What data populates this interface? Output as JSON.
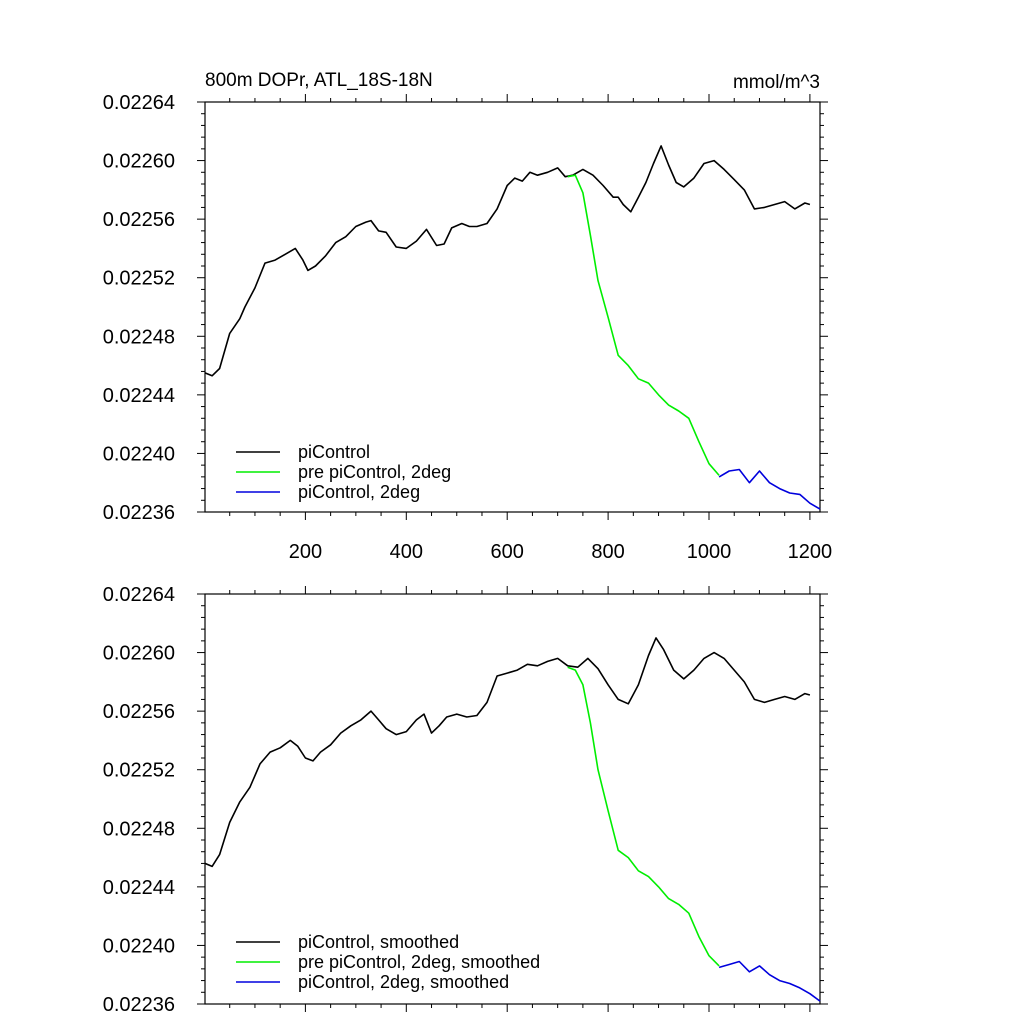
{
  "chart_data": [
    {
      "type": "line",
      "title": "800m DOPr, ATL_18S-18N",
      "units": "mmol/m^3",
      "xlim": [
        1,
        1220
      ],
      "ylim": [
        0.02236,
        0.02264
      ],
      "x_ticks": [
        200,
        400,
        600,
        800,
        1000,
        1200
      ],
      "x_tick_labels": [
        "200",
        "400",
        "600",
        "800",
        "1000",
        "1200"
      ],
      "y_ticks": [
        0.02236,
        0.0224,
        0.02244,
        0.02248,
        0.02252,
        0.02256,
        0.0226,
        0.02264
      ],
      "y_tick_labels": [
        "0.02236",
        "0.02240",
        "0.02244",
        "0.02248",
        "0.02252",
        "0.02256",
        "0.02260",
        "0.02264"
      ],
      "legend_position": "bottom-left",
      "series": [
        {
          "name": "piControl",
          "color": "#000000",
          "x": [
            1,
            15,
            30,
            50,
            70,
            80,
            100,
            120,
            140,
            160,
            180,
            195,
            205,
            220,
            240,
            260,
            280,
            300,
            320,
            330,
            345,
            360,
            380,
            400,
            420,
            440,
            460,
            475,
            490,
            510,
            525,
            540,
            560,
            580,
            600,
            615,
            630,
            645,
            660,
            680,
            700,
            715,
            730,
            750,
            770,
            790,
            810,
            820,
            830,
            845,
            860,
            875,
            890,
            905,
            920,
            935,
            950,
            970,
            990,
            1010,
            1030,
            1050,
            1070,
            1090,
            1110,
            1130,
            1150,
            1170,
            1190,
            1200
          ],
          "y": [
            0.022455,
            0.022453,
            0.022458,
            0.022482,
            0.022492,
            0.0225,
            0.022513,
            0.02253,
            0.022532,
            0.022536,
            0.02254,
            0.022532,
            0.022525,
            0.022528,
            0.022535,
            0.022544,
            0.022548,
            0.022555,
            0.022558,
            0.022559,
            0.022552,
            0.022551,
            0.022541,
            0.02254,
            0.022545,
            0.022553,
            0.022542,
            0.022543,
            0.022554,
            0.022557,
            0.022555,
            0.022555,
            0.022557,
            0.022567,
            0.022583,
            0.022588,
            0.022586,
            0.022592,
            0.02259,
            0.022592,
            0.022595,
            0.022589,
            0.02259,
            0.022594,
            0.02259,
            0.022583,
            0.022575,
            0.022575,
            0.02257,
            0.022565,
            0.022575,
            0.022585,
            0.022598,
            0.02261,
            0.022597,
            0.022585,
            0.022582,
            0.022588,
            0.022598,
            0.0226,
            0.022594,
            0.022587,
            0.02258,
            0.022567,
            0.022568,
            0.02257,
            0.022572,
            0.022567,
            0.022571,
            0.02257
          ]
        },
        {
          "name": "pre piControl, 2deg",
          "color": "#00ee00",
          "x": [
            720,
            735,
            750,
            765,
            780,
            800,
            820,
            840,
            860,
            880,
            900,
            920,
            940,
            960,
            980,
            1000,
            1020
          ],
          "y": [
            0.022589,
            0.02259,
            0.022578,
            0.022549,
            0.022518,
            0.022493,
            0.022467,
            0.02246,
            0.022451,
            0.022448,
            0.02244,
            0.022433,
            0.022429,
            0.022424,
            0.022408,
            0.022393,
            0.022385
          ]
        },
        {
          "name": "piControl, 2deg",
          "color": "#0000dd",
          "x": [
            1020,
            1040,
            1060,
            1080,
            1100,
            1120,
            1140,
            1160,
            1180,
            1200,
            1220
          ],
          "y": [
            0.022384,
            0.022388,
            0.022389,
            0.02238,
            0.022388,
            0.02238,
            0.022376,
            0.022373,
            0.022372,
            0.022366,
            0.022362
          ]
        }
      ]
    },
    {
      "type": "line",
      "xlim": [
        1,
        1220
      ],
      "ylim": [
        0.02236,
        0.02264
      ],
      "x_ticks": [
        200,
        400,
        600,
        800,
        1000,
        1200
      ],
      "y_ticks": [
        0.02236,
        0.0224,
        0.02244,
        0.02248,
        0.02252,
        0.02256,
        0.0226,
        0.02264
      ],
      "y_tick_labels": [
        "0.02236",
        "0.02240",
        "0.02244",
        "0.02248",
        "0.02252",
        "0.02256",
        "0.02260",
        "0.02264"
      ],
      "legend_position": "bottom-left",
      "series": [
        {
          "name": "piControl, smoothed",
          "color": "#000000",
          "x": [
            1,
            15,
            30,
            50,
            70,
            90,
            110,
            130,
            150,
            170,
            185,
            200,
            215,
            230,
            250,
            270,
            290,
            310,
            330,
            345,
            360,
            380,
            400,
            420,
            435,
            450,
            465,
            480,
            500,
            520,
            540,
            560,
            580,
            600,
            620,
            640,
            660,
            680,
            700,
            720,
            740,
            760,
            780,
            800,
            820,
            840,
            860,
            880,
            895,
            910,
            930,
            950,
            970,
            990,
            1010,
            1030,
            1050,
            1070,
            1090,
            1110,
            1130,
            1150,
            1170,
            1190,
            1200
          ],
          "y": [
            0.022456,
            0.022454,
            0.022462,
            0.022484,
            0.022498,
            0.022508,
            0.022524,
            0.022532,
            0.022535,
            0.02254,
            0.022536,
            0.022528,
            0.022526,
            0.022532,
            0.022537,
            0.022545,
            0.02255,
            0.022554,
            0.02256,
            0.022554,
            0.022548,
            0.022544,
            0.022546,
            0.022554,
            0.022558,
            0.022545,
            0.02255,
            0.022556,
            0.022558,
            0.022556,
            0.022557,
            0.022566,
            0.022584,
            0.022586,
            0.022588,
            0.022592,
            0.022591,
            0.022594,
            0.022596,
            0.022591,
            0.02259,
            0.022596,
            0.022589,
            0.022578,
            0.022568,
            0.022565,
            0.022578,
            0.022598,
            0.02261,
            0.022602,
            0.022588,
            0.022582,
            0.022588,
            0.022596,
            0.0226,
            0.022596,
            0.022588,
            0.02258,
            0.022568,
            0.022566,
            0.022568,
            0.02257,
            0.022568,
            0.022572,
            0.022571
          ]
        },
        {
          "name": "pre piControl, 2deg, smoothed",
          "color": "#00ee00",
          "x": [
            720,
            735,
            750,
            765,
            780,
            800,
            820,
            840,
            860,
            880,
            900,
            920,
            940,
            960,
            980,
            1000,
            1020
          ],
          "y": [
            0.02259,
            0.022588,
            0.022578,
            0.022552,
            0.02252,
            0.022492,
            0.022465,
            0.02246,
            0.022451,
            0.022447,
            0.02244,
            0.022432,
            0.022428,
            0.022422,
            0.022406,
            0.022393,
            0.022386
          ]
        },
        {
          "name": "piControl, 2deg, smoothed",
          "color": "#0000dd",
          "x": [
            1020,
            1040,
            1060,
            1080,
            1100,
            1120,
            1140,
            1160,
            1180,
            1200,
            1220
          ],
          "y": [
            0.022385,
            0.022387,
            0.022389,
            0.022382,
            0.022386,
            0.02238,
            0.022376,
            0.022374,
            0.022371,
            0.022367,
            0.022362
          ]
        }
      ]
    }
  ]
}
